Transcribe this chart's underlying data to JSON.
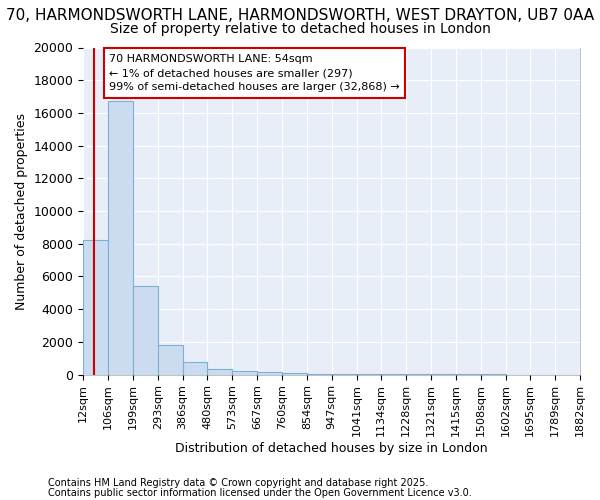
{
  "title1": "70, HARMONDSWORTH LANE, HARMONDSWORTH, WEST DRAYTON, UB7 0AA",
  "title2": "Size of property relative to detached houses in London",
  "xlabel": "Distribution of detached houses by size in London",
  "ylabel": "Number of detached properties",
  "bin_edges": [
    12,
    106,
    199,
    293,
    386,
    480,
    573,
    667,
    760,
    854,
    947,
    1041,
    1134,
    1228,
    1321,
    1415,
    1508,
    1602,
    1695,
    1789,
    1882
  ],
  "bar_heights": [
    8200,
    16700,
    5400,
    1800,
    750,
    350,
    200,
    150,
    100,
    60,
    40,
    30,
    20,
    15,
    10,
    8,
    6,
    5,
    4,
    3
  ],
  "bar_color": "#ccdcf0",
  "bar_edge_color": "#7bafd4",
  "property_size": 54,
  "red_line_color": "#cc0000",
  "annotation_text": "70 HARMONDSWORTH LANE: 54sqm\n← 1% of detached houses are smaller (297)\n99% of semi-detached houses are larger (32,868) →",
  "annotation_box_color": "#ffffff",
  "annotation_box_edge_color": "#cc0000",
  "footer1": "Contains HM Land Registry data © Crown copyright and database right 2025.",
  "footer2": "Contains public sector information licensed under the Open Government Licence v3.0.",
  "ylim": [
    0,
    20000
  ],
  "plot_bg_color": "#e8eef8",
  "fig_bg_color": "#ffffff",
  "grid_color": "#ffffff",
  "title1_fontsize": 11,
  "title2_fontsize": 10,
  "tick_label_fontsize": 8,
  "ylabel_fontsize": 9,
  "xlabel_fontsize": 9,
  "footer_fontsize": 7
}
